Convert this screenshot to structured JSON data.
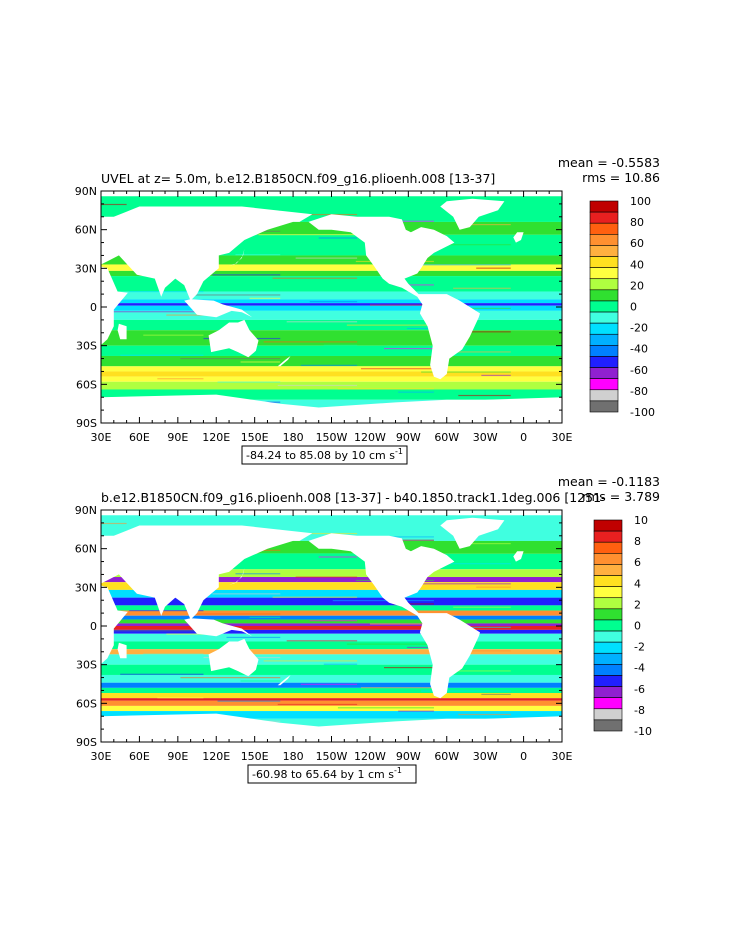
{
  "chart_data": [
    {
      "type": "heatmap",
      "title": "UVEL at z=    5.0m, b.e12.B1850CN.f09_g16.plioenh.008 [13-37]",
      "mean_label": "mean = -0.5583",
      "rms_label": "rms = 10.86",
      "range_label": "-84.24 to 85.08 by 10 cm s",
      "range_units_sup": "-1",
      "xticks": [
        "30E",
        "60E",
        "90E",
        "120E",
        "150E",
        "180",
        "150W",
        "120W",
        "90W",
        "60W",
        "30W",
        "0",
        "30E"
      ],
      "yticks": [
        "90N",
        "60N",
        "30N",
        "0",
        "30S",
        "60S",
        "90S"
      ],
      "colorbar_labels": [
        "100",
        "80",
        "60",
        "40",
        "20",
        "0",
        "-20",
        "-40",
        "-60",
        "-80",
        "-100"
      ],
      "colorbar_colors": [
        "#c00000",
        "#e82020",
        "#ff6010",
        "#ff9030",
        "#ffb040",
        "#ffe020",
        "#ffff40",
        "#b0ff40",
        "#30e030",
        "#00ff90",
        "#40ffe0",
        "#00e0ff",
        "#00b0ff",
        "#0080ff",
        "#2020ff",
        "#9020d0",
        "#ff00ff",
        "#d0d0d0",
        "#707070"
      ]
    },
    {
      "type": "heatmap",
      "title": "b.e12.B1850CN.f09_g16.plioenh.008 [13-37] - b40.1850.track1.1deg.006 [1251-",
      "mean_label": "mean = -0.1183",
      "rms_label": "rms = 3.789",
      "range_label": "-60.98 to 65.64 by 1 cm s",
      "range_units_sup": "-1",
      "xticks": [
        "30E",
        "60E",
        "90E",
        "120E",
        "150E",
        "180",
        "150W",
        "120W",
        "90W",
        "60W",
        "30W",
        "0",
        "30E"
      ],
      "yticks": [
        "90N",
        "60N",
        "30N",
        "0",
        "30S",
        "60S",
        "90S"
      ],
      "colorbar_labels": [
        "10",
        "8",
        "6",
        "4",
        "2",
        "0",
        "-2",
        "-4",
        "-6",
        "-8",
        "-10"
      ],
      "colorbar_colors": [
        "#c00000",
        "#e82020",
        "#ff6010",
        "#ff9030",
        "#ffb040",
        "#ffe020",
        "#ffff40",
        "#b0ff40",
        "#30e030",
        "#00ff90",
        "#40ffe0",
        "#00e0ff",
        "#00b0ff",
        "#0080ff",
        "#2020ff",
        "#9020d0",
        "#ff00ff",
        "#d0d0d0",
        "#707070"
      ]
    }
  ],
  "colors": {
    "ocean_main_1": "#30e030",
    "ocean_main_2": "#40ffe0",
    "land": "#ffffff"
  }
}
